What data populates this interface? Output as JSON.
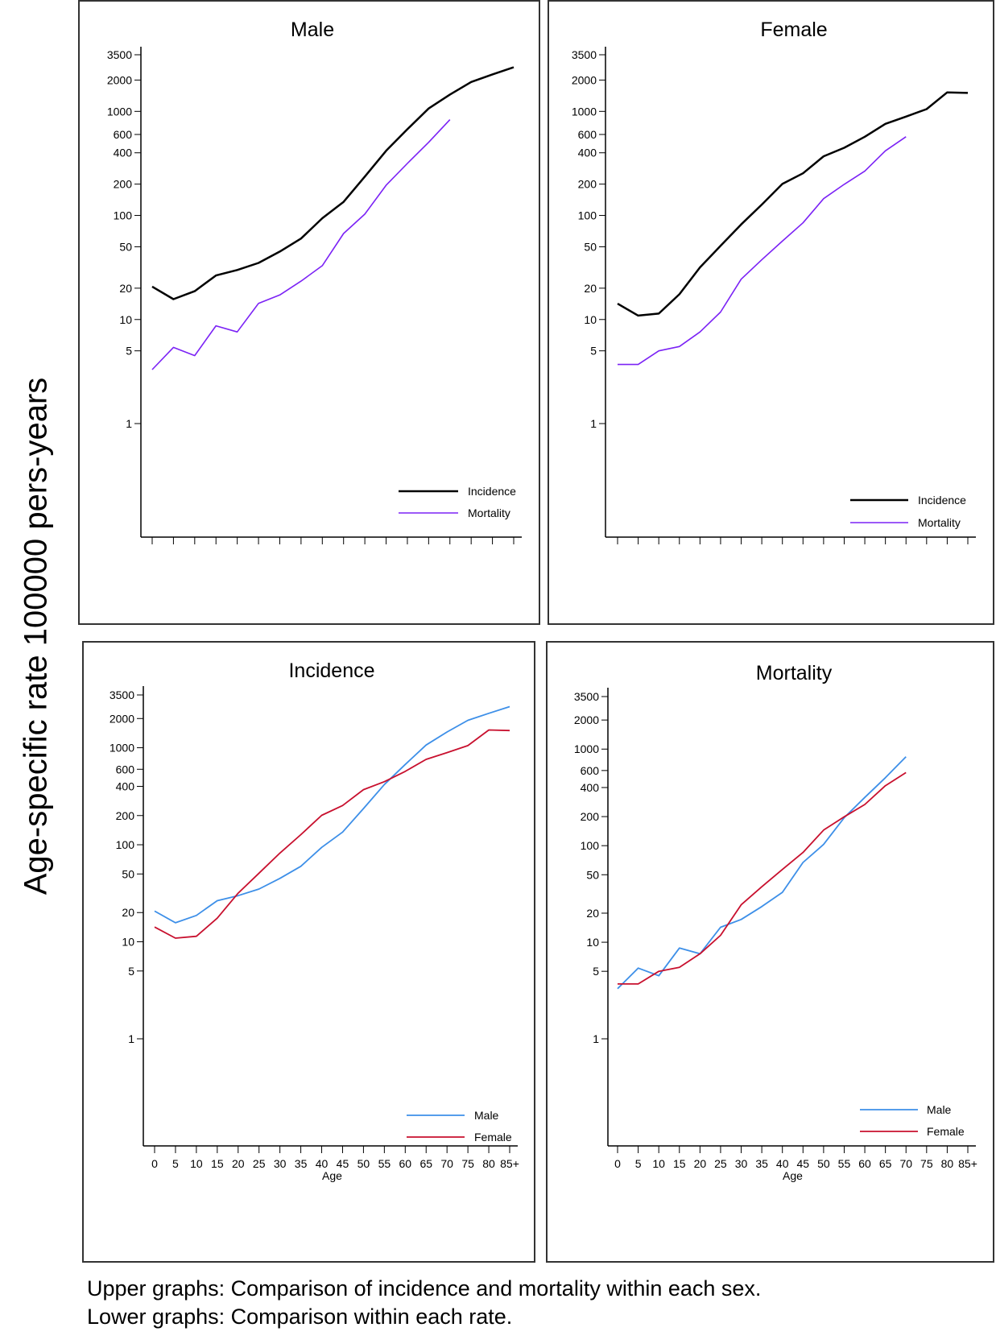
{
  "y_axis_label": "Age-specific rate 100000 pers-years",
  "caption": [
    "Upper graphs: Comparison of incidence and mortality within each sex.",
    "Lower graphs: Comparison within each rate."
  ],
  "colors": {
    "incidence": "#000000",
    "mortality": "#7b22f5",
    "male": "#3d8fe8",
    "female": "#c8102e",
    "frame": "#333333"
  },
  "chart_data": {
    "type": "line",
    "y_scale": "log",
    "ylim": [
      0.08,
      4200
    ],
    "y_ticks": [
      3500,
      2000,
      1000,
      600,
      400,
      200,
      100,
      50,
      20,
      10,
      5,
      1
    ],
    "x": [
      "0",
      "5",
      "10",
      "15",
      "20",
      "25",
      "30",
      "35",
      "40",
      "45",
      "50",
      "55",
      "60",
      "65",
      "70",
      "75",
      "80",
      "85+"
    ],
    "xlabel": "Age",
    "series_values": {
      "male_incidence": [
        20.7,
        15.7,
        18.7,
        26.5,
        29.9,
        35,
        45,
        60,
        94,
        135,
        236,
        418,
        673,
        1066,
        1452,
        1918,
        2265,
        2655
      ],
      "male_mortality": [
        3.3,
        5.4,
        4.5,
        8.7,
        7.6,
        14.3,
        17.2,
        23.4,
        32.9,
        67,
        103,
        195,
        316,
        505,
        833,
        null,
        null,
        null
      ],
      "female_incidence": [
        14.2,
        10.9,
        11.4,
        17.5,
        31.7,
        51,
        82,
        127,
        201,
        254,
        370,
        447,
        571,
        759,
        891,
        1052,
        1524,
        1503
      ],
      "female_mortality": [
        3.7,
        3.7,
        5.0,
        5.5,
        7.6,
        11.8,
        24.4,
        37.5,
        56.7,
        85,
        145,
        199,
        267,
        418,
        571,
        null,
        null,
        null
      ]
    },
    "panels": [
      {
        "title": "Male",
        "show_x_labels": false,
        "series": [
          {
            "name": "Incidence",
            "key": "male_incidence",
            "color_key": "incidence",
            "width": 2.5
          },
          {
            "name": "Mortality",
            "key": "male_mortality",
            "color_key": "mortality",
            "width": 1.6
          }
        ]
      },
      {
        "title": "Female",
        "show_x_labels": false,
        "series": [
          {
            "name": "Incidence",
            "key": "female_incidence",
            "color_key": "incidence",
            "width": 2.5
          },
          {
            "name": "Mortality",
            "key": "female_mortality",
            "color_key": "mortality",
            "width": 1.6
          }
        ]
      },
      {
        "title": "Incidence",
        "show_x_labels": true,
        "series": [
          {
            "name": "Male",
            "key": "male_incidence",
            "color_key": "male",
            "width": 1.8
          },
          {
            "name": "Female",
            "key": "female_incidence",
            "color_key": "female",
            "width": 1.8
          }
        ]
      },
      {
        "title": "Mortality",
        "show_x_labels": true,
        "series": [
          {
            "name": "Male",
            "key": "male_mortality",
            "color_key": "male",
            "width": 1.8
          },
          {
            "name": "Female",
            "key": "female_mortality",
            "color_key": "female",
            "width": 1.8
          }
        ]
      }
    ]
  }
}
